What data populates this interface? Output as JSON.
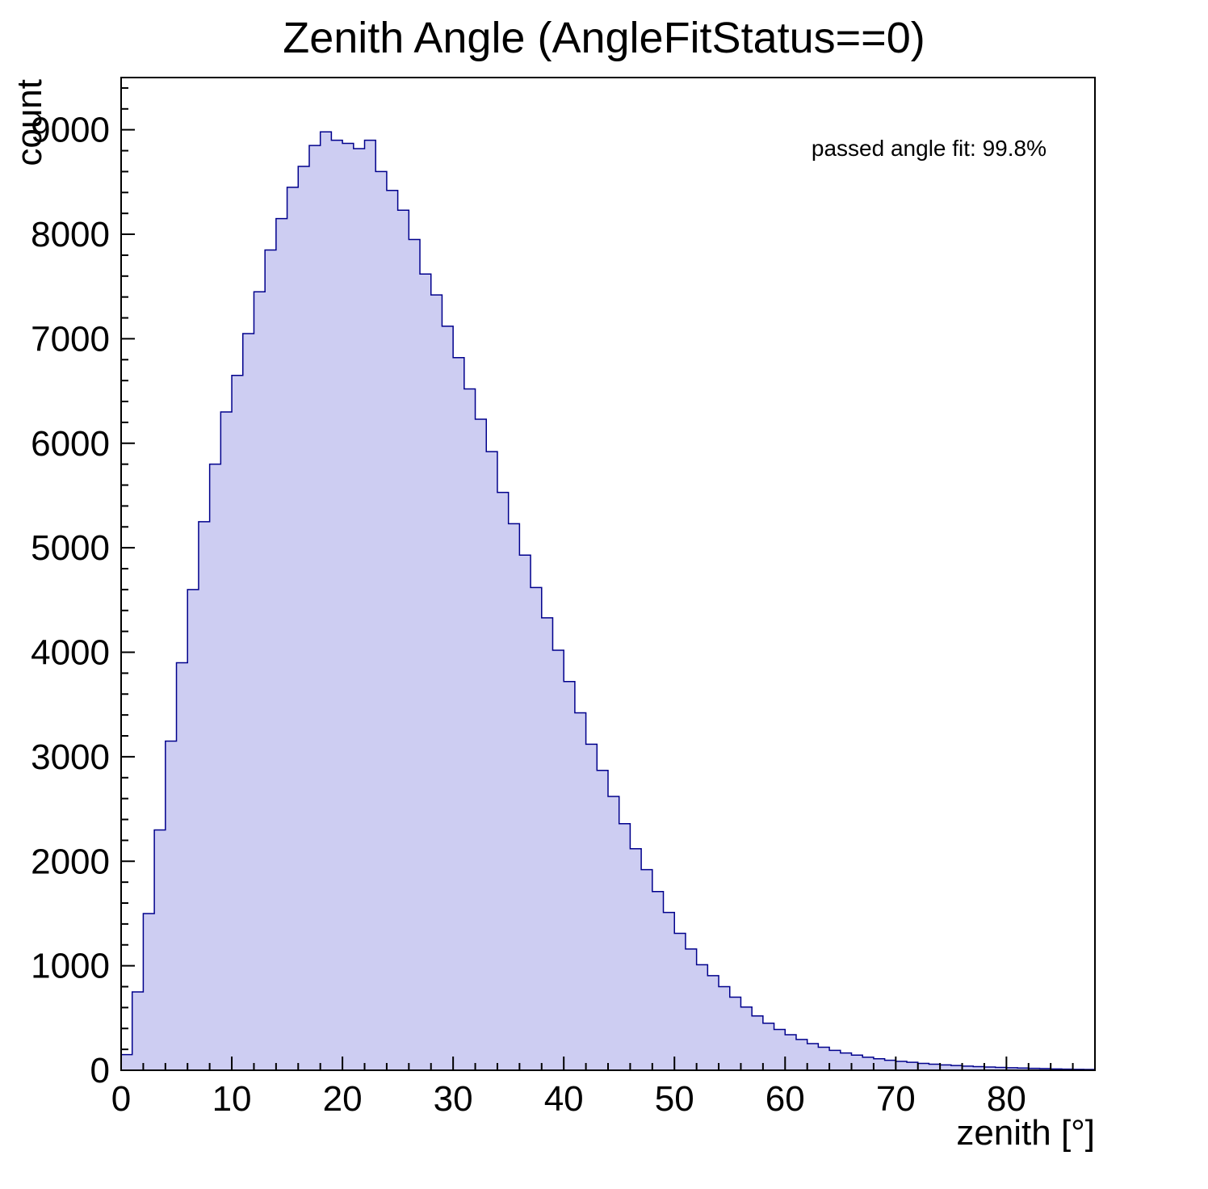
{
  "page": {
    "background": "#ffffff"
  },
  "chart_data": {
    "type": "bar",
    "subtype": "histogram",
    "title": "Zenith Angle (AngleFitStatus==0)",
    "xlabel": "zenith [°]",
    "ylabel": "count",
    "annotation": "passed angle fit: 99.8%",
    "xlim": [
      0,
      88
    ],
    "ylim": [
      0,
      9500
    ],
    "xticks": [
      0,
      10,
      20,
      30,
      40,
      50,
      60,
      70,
      80
    ],
    "yticks": [
      0,
      1000,
      2000,
      3000,
      4000,
      5000,
      6000,
      7000,
      8000,
      9000
    ],
    "x_minor_step": 2,
    "y_minor_step": 200,
    "grid": false,
    "legend": "none",
    "fill_color": "#cdcdf2",
    "line_color": "#00008c",
    "axis_color": "#000000",
    "bin_start": 0,
    "bin_width": 1,
    "counts": [
      150,
      750,
      1500,
      2300,
      3150,
      3900,
      4600,
      5250,
      5800,
      6300,
      6650,
      7050,
      7450,
      7850,
      8150,
      8450,
      8650,
      8850,
      8980,
      8900,
      8870,
      8820,
      8900,
      8600,
      8420,
      8230,
      7950,
      7620,
      7420,
      7120,
      6820,
      6520,
      6230,
      5920,
      5530,
      5230,
      4930,
      4620,
      4330,
      4020,
      3720,
      3420,
      3120,
      2870,
      2620,
      2360,
      2120,
      1920,
      1710,
      1510,
      1310,
      1160,
      1010,
      905,
      800,
      700,
      605,
      520,
      450,
      390,
      340,
      295,
      255,
      220,
      190,
      165,
      145,
      125,
      110,
      96,
      85,
      76,
      66,
      58,
      51,
      45,
      40,
      35,
      31,
      27,
      24,
      21,
      18,
      16,
      13,
      11,
      9,
      8
    ]
  }
}
